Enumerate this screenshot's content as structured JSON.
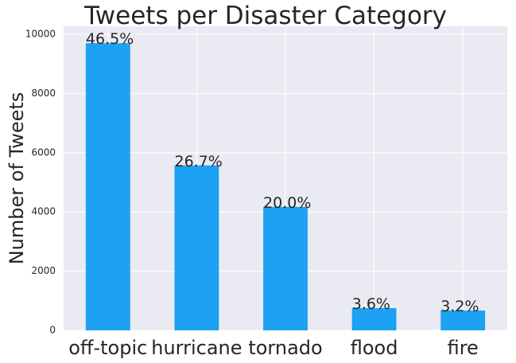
{
  "chart_data": {
    "type": "bar",
    "title": "Tweets per Disaster Category",
    "y_label": "Number of Tweets",
    "categories": [
      "off-topic",
      "hurricane",
      "tornado",
      "flood",
      "fire"
    ],
    "values": [
      9700,
      5570,
      4170,
      750,
      670
    ],
    "annotations": [
      "46.5%",
      "26.7%",
      "20.0%",
      "3.6%",
      "3.2%"
    ],
    "color": "#1da1f2",
    "ylim": [
      0,
      10270
    ],
    "yticks": [
      0,
      2000,
      4000,
      6000,
      8000,
      10000
    ],
    "grid": true
  }
}
